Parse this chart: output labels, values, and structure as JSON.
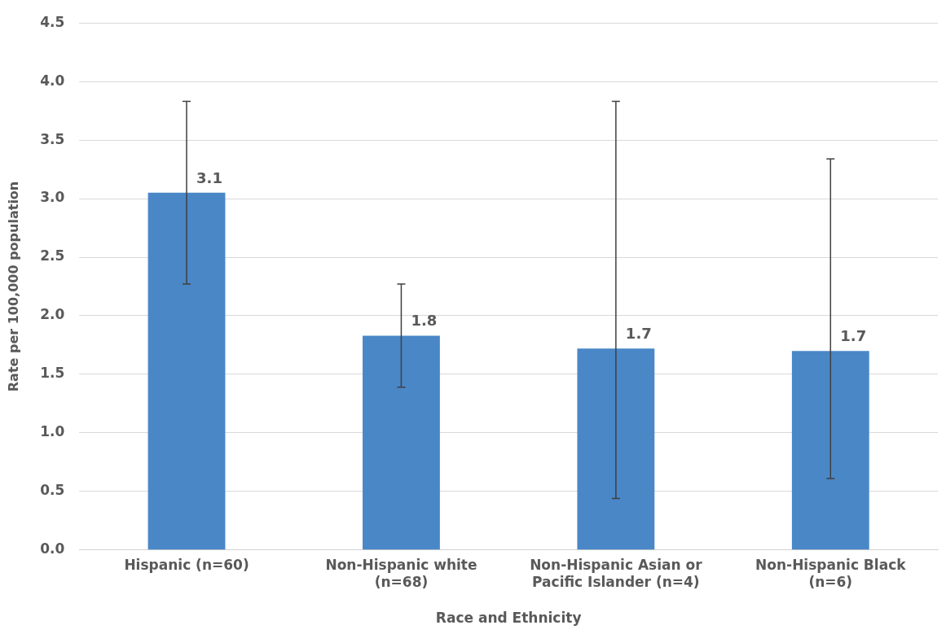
{
  "chart_data": {
    "type": "bar",
    "xlabel": "Race and Ethnicity",
    "ylabel": "Rate per 100,000 population",
    "categories": [
      "Hispanic (n=60)",
      "Non-Hispanic white (n=68)",
      "Non-Hispanic Asian or Pacific Islander (n=4)",
      "Non-Hispanic Black (n=6)"
    ],
    "values": [
      3.05,
      1.83,
      1.72,
      1.7
    ],
    "errors": [
      [
        2.27,
        3.83
      ],
      [
        1.39,
        2.27
      ],
      [
        0.44,
        3.83
      ],
      [
        0.61,
        3.34
      ]
    ],
    "value_labels": [
      "3.1",
      "1.8",
      "1.7",
      "1.7"
    ],
    "color": "#4a87c7",
    "ylim": [
      0,
      4.5
    ],
    "yticks": [
      {
        "value": 0,
        "label": "0.0"
      },
      0.5,
      {
        "value": 1,
        "label": "1.0"
      },
      1.5,
      {
        "value": 2,
        "label": "2.0"
      },
      2.5,
      {
        "value": 3,
        "label": "3.0"
      },
      3.5,
      {
        "value": 4,
        "label": "4.0"
      },
      4.5
    ],
    "grid": "y",
    "legend": false
  }
}
